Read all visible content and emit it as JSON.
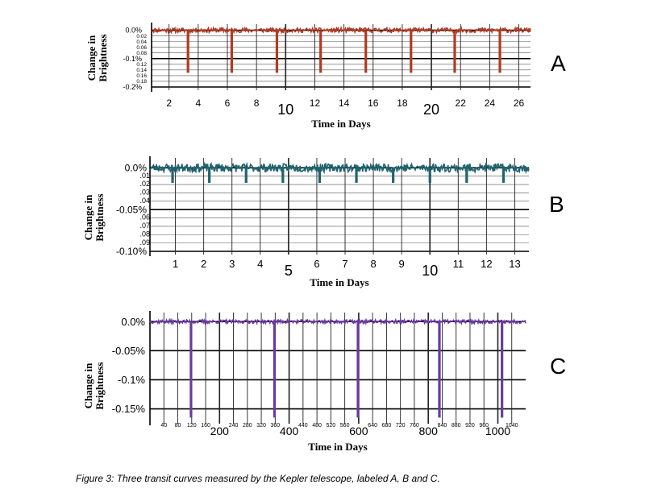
{
  "caption": "Figure 3: Three transit curves measured by the Kepler telescope, labeled A, B and C.",
  "chart_data": [
    {
      "type": "line",
      "panel_label": "A",
      "ylabel_lines": [
        "Change in",
        "Brightness"
      ],
      "xlabel": "Time in Days",
      "color": "#b03a22",
      "xlim": [
        0.8,
        26.8
      ],
      "ylim": [
        -0.2,
        0.01
      ],
      "y_major_ticks": [
        {
          "label": "0.0%",
          "value": 0.0
        },
        {
          "label": "-0.1%",
          "value": -0.1
        },
        {
          "label": "-0.2%",
          "value": -0.2
        }
      ],
      "y_minor_ticks": [
        {
          "label": "0.02",
          "value": -0.02
        },
        {
          "label": "0.04",
          "value": -0.04
        },
        {
          "label": "0.06",
          "value": -0.06
        },
        {
          "label": "0.08",
          "value": -0.08
        },
        {
          "label": "0.12",
          "value": -0.12
        },
        {
          "label": "0.14",
          "value": -0.14
        },
        {
          "label": "0.16",
          "value": -0.16
        },
        {
          "label": "0.18",
          "value": -0.18
        }
      ],
      "x_ticks": [
        {
          "label": "2",
          "value": 2,
          "big": false
        },
        {
          "label": "4",
          "value": 4,
          "big": false
        },
        {
          "label": "6",
          "value": 6,
          "big": false
        },
        {
          "label": "8",
          "value": 8,
          "big": false
        },
        {
          "label": "10",
          "value": 10,
          "big": true
        },
        {
          "label": "12",
          "value": 12,
          "big": false
        },
        {
          "label": "14",
          "value": 14,
          "big": false
        },
        {
          "label": "16",
          "value": 16,
          "big": false
        },
        {
          "label": "18",
          "value": 18,
          "big": false
        },
        {
          "label": "20",
          "value": 20,
          "big": true
        },
        {
          "label": "22",
          "value": 22,
          "big": false
        },
        {
          "label": "24",
          "value": 24,
          "big": false
        },
        {
          "label": "26",
          "value": 26,
          "big": false
        }
      ],
      "baseline": 0.0,
      "noise": 0.008,
      "transit_times": [
        3.3,
        6.3,
        9.4,
        12.4,
        15.5,
        18.6,
        21.6,
        24.7
      ],
      "transit_depth": -0.15
    },
    {
      "type": "line",
      "panel_label": "B",
      "ylabel_lines": [
        "Change in",
        "Brightness"
      ],
      "xlabel": "Time in Days",
      "color": "#1f6470",
      "xlim": [
        0.1,
        13.5
      ],
      "ylim": [
        -0.1,
        0.008
      ],
      "y_major_ticks": [
        {
          "label": "0.0%",
          "value": 0.0
        },
        {
          "label": "-0.05%",
          "value": -0.05
        },
        {
          "label": "-0.10%",
          "value": -0.1
        }
      ],
      "y_minor_ticks": [
        {
          "label": ".01",
          "value": -0.01
        },
        {
          "label": ".02",
          "value": -0.02
        },
        {
          "label": ".03",
          "value": -0.03
        },
        {
          "label": ".04",
          "value": -0.04
        },
        {
          "label": ".06",
          "value": -0.06
        },
        {
          "label": ".07",
          "value": -0.07
        },
        {
          "label": ".08",
          "value": -0.08
        },
        {
          "label": ".09",
          "value": -0.09
        }
      ],
      "x_ticks": [
        {
          "label": "1",
          "value": 1,
          "big": false
        },
        {
          "label": "2",
          "value": 2,
          "big": false
        },
        {
          "label": "3",
          "value": 3,
          "big": false
        },
        {
          "label": "4",
          "value": 4,
          "big": false
        },
        {
          "label": "5",
          "value": 5,
          "big": true
        },
        {
          "label": "6",
          "value": 6,
          "big": false
        },
        {
          "label": "7",
          "value": 7,
          "big": false
        },
        {
          "label": "8",
          "value": 8,
          "big": false
        },
        {
          "label": "9",
          "value": 9,
          "big": false
        },
        {
          "label": "10",
          "value": 10,
          "big": true
        },
        {
          "label": "11",
          "value": 11,
          "big": false
        },
        {
          "label": "12",
          "value": 12,
          "big": false
        },
        {
          "label": "13",
          "value": 13,
          "big": false
        }
      ],
      "baseline": 0.0,
      "noise": 0.005,
      "transit_times": [
        0.9,
        2.2,
        3.5,
        4.8,
        6.1,
        7.4,
        8.7,
        10.0,
        11.3,
        12.6
      ],
      "transit_depth": -0.018
    },
    {
      "type": "line",
      "panel_label": "C",
      "ylabel_lines": [
        "Change in",
        "Brightness"
      ],
      "xlabel": "Time in Days",
      "color": "#6a3a9e",
      "xlim": [
        0,
        1080
      ],
      "ylim": [
        -0.17,
        0.01
      ],
      "y_major_ticks": [
        {
          "label": "0.0%",
          "value": 0.0
        },
        {
          "label": "-0.05%",
          "value": -0.05
        },
        {
          "label": "-0.1%",
          "value": -0.1
        },
        {
          "label": "-0.15%",
          "value": -0.15
        }
      ],
      "x_ticks": [
        {
          "label": "40",
          "value": 40,
          "big": false
        },
        {
          "label": "80",
          "value": 80,
          "big": false
        },
        {
          "label": "120",
          "value": 120,
          "big": false
        },
        {
          "label": "160",
          "value": 160,
          "big": false
        },
        {
          "label": "200",
          "value": 200,
          "big": true
        },
        {
          "label": "240",
          "value": 240,
          "big": false
        },
        {
          "label": "280",
          "value": 280,
          "big": false
        },
        {
          "label": "320",
          "value": 320,
          "big": false
        },
        {
          "label": "360",
          "value": 360,
          "big": false
        },
        {
          "label": "400",
          "value": 400,
          "big": true
        },
        {
          "label": "440",
          "value": 440,
          "big": false
        },
        {
          "label": "480",
          "value": 480,
          "big": false
        },
        {
          "label": "520",
          "value": 520,
          "big": false
        },
        {
          "label": "560",
          "value": 560,
          "big": false
        },
        {
          "label": "600",
          "value": 600,
          "big": true
        },
        {
          "label": "640",
          "value": 640,
          "big": false
        },
        {
          "label": "680",
          "value": 680,
          "big": false
        },
        {
          "label": "720",
          "value": 720,
          "big": false
        },
        {
          "label": "760",
          "value": 760,
          "big": false
        },
        {
          "label": "800",
          "value": 800,
          "big": true
        },
        {
          "label": "840",
          "value": 840,
          "big": false
        },
        {
          "label": "880",
          "value": 880,
          "big": false
        },
        {
          "label": "920",
          "value": 920,
          "big": false
        },
        {
          "label": "960",
          "value": 960,
          "big": false
        },
        {
          "label": "1000",
          "value": 1000,
          "big": true
        },
        {
          "label": "1040",
          "value": 1040,
          "big": false
        }
      ],
      "baseline": 0.0,
      "noise": 0.003,
      "transit_times": [
        118,
        358,
        598,
        832,
        1012
      ],
      "transit_depth": -0.165
    }
  ]
}
